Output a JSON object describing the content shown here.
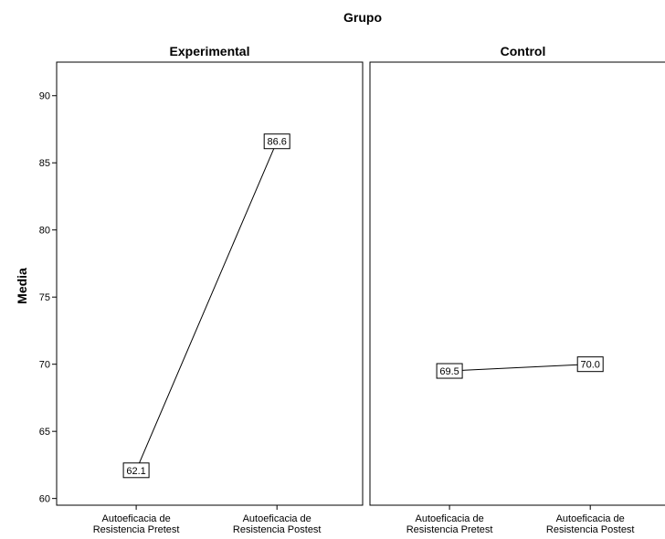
{
  "chart_data": {
    "type": "line",
    "title": "Grupo",
    "ylabel": "Media",
    "ylim": [
      59.5,
      92.5
    ],
    "yticks": [
      60,
      65,
      70,
      75,
      80,
      85,
      90
    ],
    "categories": [
      "Autoeficacia de Resistencia Pretest",
      "Autoeficacia de Resistencia Postest"
    ],
    "category_lines": [
      [
        "Autoeficacia de",
        "Resistencia Pretest"
      ],
      [
        "Autoeficacia de",
        "Resistencia Postest"
      ]
    ],
    "grid": false,
    "panels": [
      {
        "name": "Experimental",
        "values": [
          62.1,
          86.6
        ],
        "labels": [
          "62.1",
          "86.6"
        ]
      },
      {
        "name": "Control",
        "values": [
          69.5,
          70.0
        ],
        "labels": [
          "69.5",
          "70.0"
        ]
      }
    ]
  }
}
